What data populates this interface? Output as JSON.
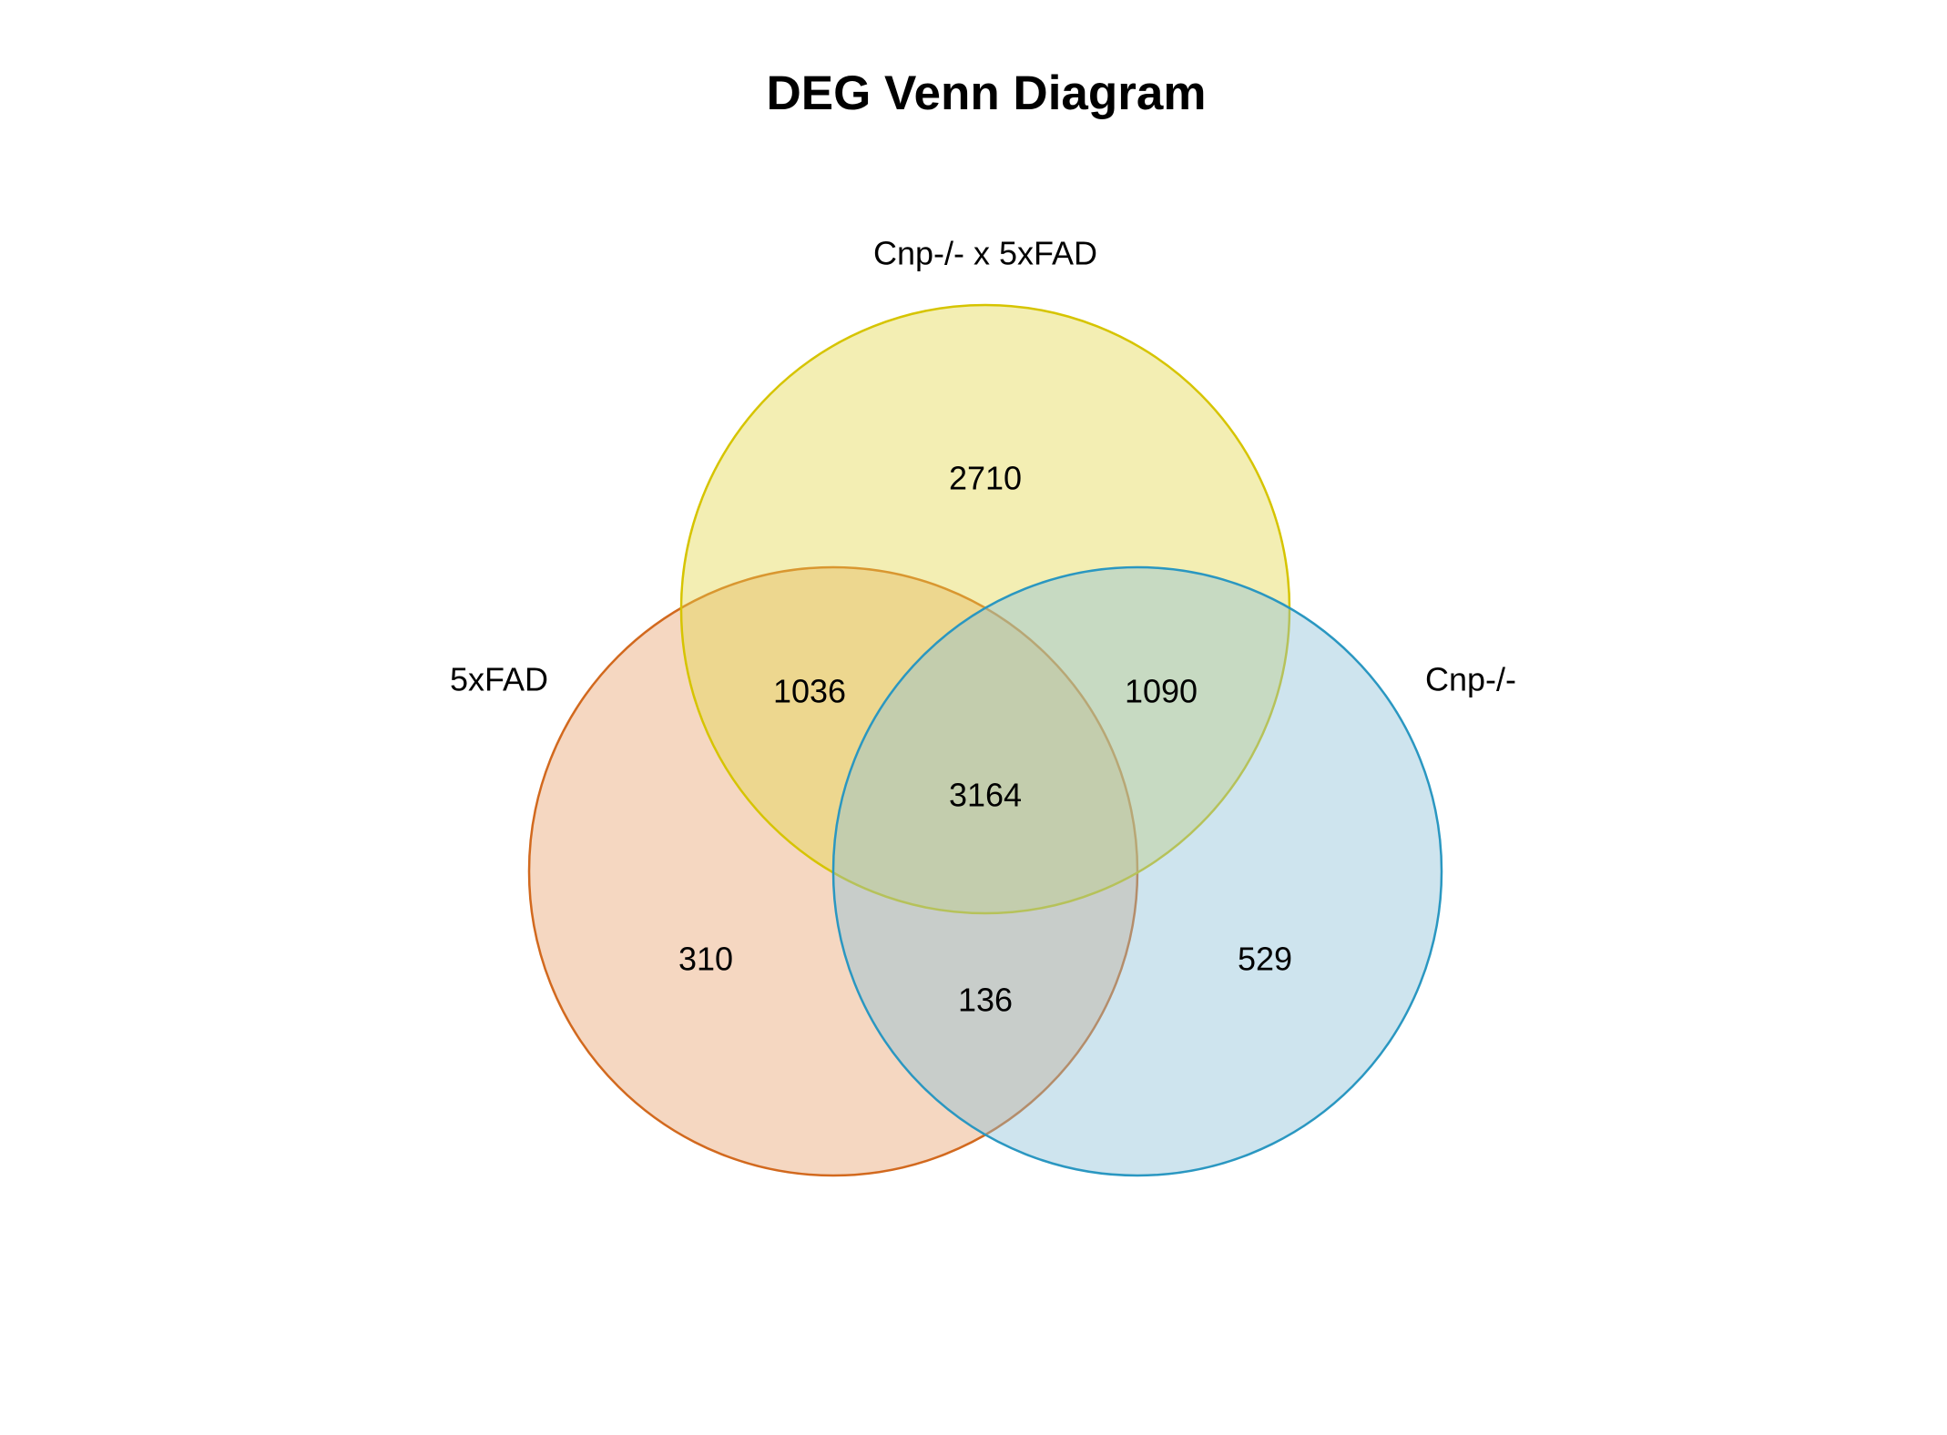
{
  "title": "DEG Venn Diagram",
  "sets": [
    {
      "key": "A",
      "name": "5xFAD",
      "fill": "#E69F6B",
      "stroke": "#D2691E"
    },
    {
      "key": "B",
      "name": "Cnp-/- x 5xFAD",
      "fill": "#E3D64A",
      "stroke": "#D6C400"
    },
    {
      "key": "C",
      "name": "Cnp-/-",
      "fill": "#8BBFD6",
      "stroke": "#2A97C1"
    }
  ],
  "regions": [
    {
      "key": "B_only",
      "sets": [
        "Cnp-/- x 5xFAD"
      ],
      "count": "2710"
    },
    {
      "key": "AB_only",
      "sets": [
        "5xFAD",
        "Cnp-/- x 5xFAD"
      ],
      "count": "1036"
    },
    {
      "key": "BC_only",
      "sets": [
        "Cnp-/- x 5xFAD",
        "Cnp-/-"
      ],
      "count": "1090"
    },
    {
      "key": "ABC",
      "sets": [
        "5xFAD",
        "Cnp-/- x 5xFAD",
        "Cnp-/-"
      ],
      "count": "3164"
    },
    {
      "key": "A_only",
      "sets": [
        "5xFAD"
      ],
      "count": "310"
    },
    {
      "key": "AC_only",
      "sets": [
        "5xFAD",
        "Cnp-/-"
      ],
      "count": "136"
    },
    {
      "key": "C_only",
      "sets": [
        "Cnp-/-"
      ],
      "count": "529"
    }
  ]
}
